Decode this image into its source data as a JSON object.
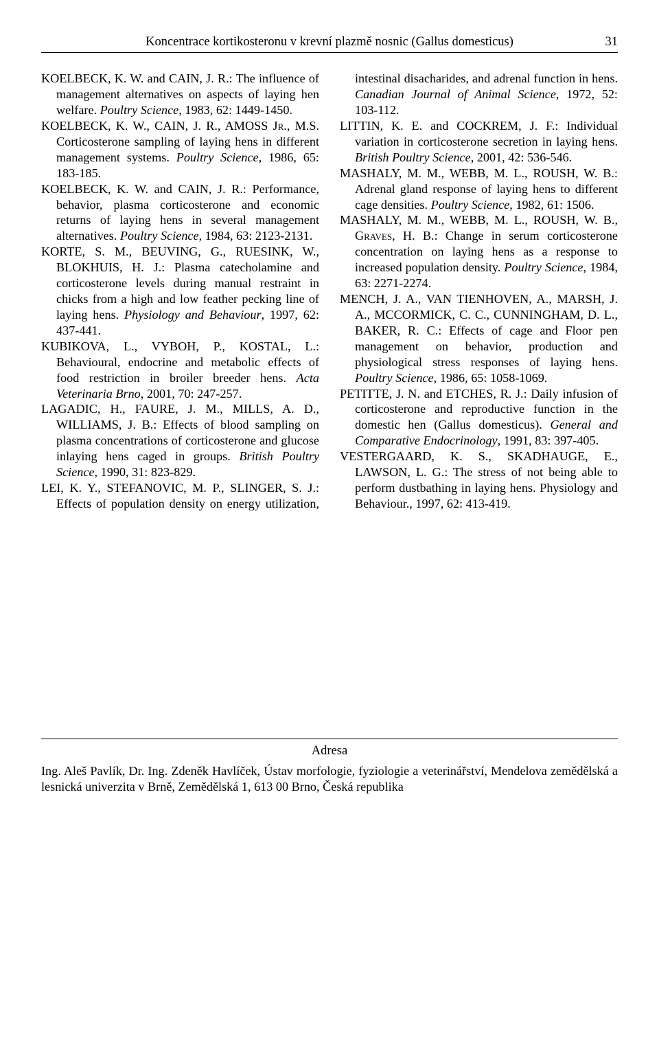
{
  "header": {
    "title": "Koncentrace kortikosteronu v krevní plazmě nosnic (Gallus domesticus)",
    "page": "31"
  },
  "references": [
    {
      "html": "KOELBECK, K. W. and CAIN, J. R.: The influence of management alternatives on aspects of laying hen welfare. <i>Poultry Science</i>, 1983, 62: 1449-1450."
    },
    {
      "html": "KOELBECK, K. W., CAIN, J. R., AMOSS J<span class='sc'>r</span>., M.S. Corticosterone sampling of laying hens in different management systems. <i>Poultry Science</i>, 1986, 65: 183-185."
    },
    {
      "html": "KOELBECK, K. W. and CAIN, J. R.: Performance, behavior, plasma corticosterone and economic returns of laying hens in several management alternatives. <i>Poultry Science</i>, 1984, 63: 2123-2131."
    },
    {
      "html": "KORTE, S. M., BEUVING, G., RUESINK, W., BLOKHUIS, H. J.: Plasma catecholamine and corticosterone levels during manual restraint in chicks from a high and low feather pecking line of laying hens. <i>Physiology and Behaviour</i>, 1997, 62: 437-441."
    },
    {
      "html": "KUBIKOVA, L., VYBOH, P., KOSTAL, L.: Behavioural, endocrine and metabolic effects of food restriction in broiler breeder hens. <i>Acta Veterinaria Brno</i>, 2001, 70: 247-257."
    },
    {
      "html": "LAGADIC, H., FAURE, J. M., MILLS, A. D., WILLIAMS, J. B.: Effects of blood sampling on plasma concentrations of corticosterone and glucose inlaying hens caged in groups. <i>British Poultry Science</i>, 1990, 31: 823-829."
    },
    {
      "html": "LEI, K. Y., STEFANOVIC, M. P., SLINGER, S. J.: Effects of population density on energy utilization, intestinal disacharides, and adrenal function in hens. <i>Canadian Journal of Animal Science</i>, 1972, 52: 103-112."
    },
    {
      "html": "LITTIN, K. E. and COCKREM, J. F.: Individual variation in corticosterone secretion in laying hens. <i>British Poultry Science</i>, 2001, 42: 536-546."
    },
    {
      "html": "MASHALY, M. M., WEBB, M. L., ROUSH, W. B.: Adrenal gland response of laying hens to different cage densities. <i>Poultry Science</i>, 1982, 61: 1506."
    },
    {
      "html": "MASHALY, M. M., WEBB, M. L., ROUSH, W. B., G<span class='sc'>raves</span>, H. B.: Change in serum corticosterone concentration on laying hens as a response to increased population density. <i>Poultry Science</i>, 1984, 63: 2271-2274."
    },
    {
      "html": "MENCH, J. A., VAN TIENHOVEN, A., MARSH, J. A., MCCORMICK, C. C., CUNNINGHAM, D. L., BAKER, R. C.: Effects of cage and Floor pen management on behavior, production and physiological stress responses of laying hens. <i>Poultry Science</i>, 1986, 65: 1058-1069."
    },
    {
      "html": "PETITTE, J. N. and ETCHES, R. J.: Daily infusion of corticosterone and reproductive function in the domestic hen (Gallus domesticus). <i>General and Comparative Endocrinology</i>, 1991, 83: 397-405."
    },
    {
      "html": "VESTERGAARD, K. S., SKADHAUGE, E., LAWSON, L. G.: The stress of not being able to perform dustbathing in laying hens. Physiology and Behaviour., 1997, 62: 413-419."
    }
  ],
  "footer": {
    "label": "Adresa",
    "text": "Ing. Aleš Pavlík, Dr. Ing. Zdeněk Havlíček, Ústav morfologie, fyziologie a veterinářství, Mendelova zemědělská a lesnická univerzita v Brně, Zemědělská 1, 613 00 Brno, Česká republika"
  }
}
